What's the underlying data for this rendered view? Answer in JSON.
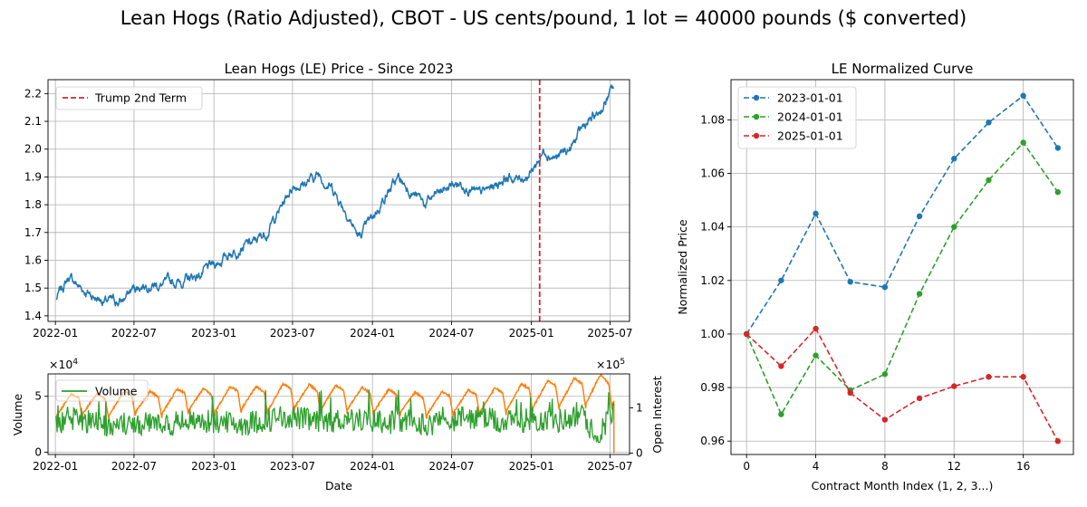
{
  "figure": {
    "suptitle": "Lean Hogs (Ratio Adjusted), CBOT - US cents/pound, 1 lot = 40000 pounds ($ converted)"
  },
  "colors": {
    "price": "#1f77b4",
    "volume": "#2ca02c",
    "open_interest": "#ff7f0e",
    "event": "#d62728",
    "s2023": "#1f77b4",
    "s2024": "#2ca02c",
    "s2025": "#d62728"
  },
  "chart_data": [
    {
      "type": "line",
      "title": "Lean Hogs (LE) Price - Since 2023",
      "xlabel": "",
      "ylabel": "",
      "xlim": [
        "2021-12-15",
        "2025-08-15"
      ],
      "ylim": [
        1.38,
        2.25
      ],
      "x_ticks": [
        "2022-01",
        "2022-07",
        "2023-01",
        "2023-07",
        "2024-01",
        "2024-07",
        "2025-01",
        "2025-07"
      ],
      "y_ticks": [
        "1.4",
        "1.5",
        "1.6",
        "1.7",
        "1.8",
        "1.9",
        "2.0",
        "2.1",
        "2.2"
      ],
      "grid": true,
      "legend": "top-left",
      "series": [
        {
          "name": "",
          "x": [
            "2022-01-03",
            "2022-02-01",
            "2022-03-01",
            "2022-04-01",
            "2022-05-01",
            "2022-06-01",
            "2022-07-01",
            "2022-08-01",
            "2022-09-01",
            "2022-10-01",
            "2022-11-01",
            "2022-12-01",
            "2023-01-01",
            "2023-02-01",
            "2023-03-01",
            "2023-04-01",
            "2023-05-01",
            "2023-06-01",
            "2023-07-01",
            "2023-08-01",
            "2023-09-01",
            "2023-10-01",
            "2023-11-01",
            "2023-12-01",
            "2024-01-01",
            "2024-02-01",
            "2024-03-01",
            "2024-04-01",
            "2024-05-01",
            "2024-06-01",
            "2024-07-01",
            "2024-08-01",
            "2024-09-01",
            "2024-10-01",
            "2024-11-01",
            "2024-12-01",
            "2025-01-01",
            "2025-02-01",
            "2025-03-01",
            "2025-04-01",
            "2025-05-01",
            "2025-06-01",
            "2025-07-10"
          ],
          "values": [
            1.46,
            1.54,
            1.5,
            1.47,
            1.45,
            1.45,
            1.5,
            1.52,
            1.51,
            1.52,
            1.53,
            1.55,
            1.58,
            1.62,
            1.65,
            1.66,
            1.7,
            1.78,
            1.87,
            1.88,
            1.91,
            1.86,
            1.78,
            1.68,
            1.75,
            1.84,
            1.89,
            1.85,
            1.8,
            1.84,
            1.87,
            1.88,
            1.83,
            1.86,
            1.9,
            1.89,
            1.92,
            2.0,
            1.97,
            2.0,
            2.08,
            2.12,
            2.22
          ]
        }
      ],
      "annotations": [
        {
          "name": "Trump 2nd Term",
          "x": "2025-01-20",
          "style": "dashed vertical line"
        }
      ]
    },
    {
      "type": "line",
      "title": "",
      "xlabel": "Date",
      "ylabel": "Volume",
      "ylabel_right": "Open Interest",
      "y_scale_label": "×10^4",
      "y2_scale_label": "×10^5",
      "xlim": [
        "2021-12-15",
        "2025-08-15"
      ],
      "ylim": [
        -0.2,
        7.0
      ],
      "y2lim": [
        -0.03,
        1.75
      ],
      "x_ticks": [
        "2022-01",
        "2022-07",
        "2023-01",
        "2023-07",
        "2024-01",
        "2024-07",
        "2025-01",
        "2025-07"
      ],
      "y_ticks": [
        "0",
        "5"
      ],
      "y2_ticks": [
        "0",
        "1"
      ],
      "grid": true,
      "legend": "top-left",
      "series": [
        {
          "name": "Volume",
          "axis": "left",
          "unit_scale": "1e4",
          "x": [
            "2022-01",
            "2022-03",
            "2022-05",
            "2022-07",
            "2022-09",
            "2022-11",
            "2023-01",
            "2023-03",
            "2023-05",
            "2023-07",
            "2023-09",
            "2023-11",
            "2024-01",
            "2024-03",
            "2024-05",
            "2024-07",
            "2024-09",
            "2024-11",
            "2025-01",
            "2025-03",
            "2025-05",
            "2025-06",
            "2025-07"
          ],
          "values": [
            2.5,
            3.0,
            2.3,
            2.6,
            2.4,
            2.8,
            2.7,
            2.5,
            2.9,
            3.2,
            2.6,
            3.0,
            2.8,
            2.7,
            2.5,
            2.9,
            3.1,
            2.6,
            3.0,
            2.8,
            3.3,
            1.0,
            3.5
          ]
        },
        {
          "name": "",
          "axis": "right",
          "unit_scale": "1e5",
          "x": [
            "2022-01",
            "2022-03",
            "2022-05",
            "2022-07",
            "2022-09",
            "2022-11",
            "2023-01",
            "2023-03",
            "2023-05",
            "2023-07",
            "2023-09",
            "2023-11",
            "2024-01",
            "2024-03",
            "2024-05",
            "2024-07",
            "2024-09",
            "2024-11",
            "2025-01",
            "2025-03",
            "2025-05",
            "2025-06",
            "2025-07"
          ],
          "values": [
            1.15,
            1.25,
            1.2,
            1.3,
            1.25,
            1.35,
            1.3,
            1.4,
            1.35,
            1.45,
            1.38,
            1.4,
            1.32,
            1.3,
            1.22,
            1.28,
            1.3,
            1.35,
            1.45,
            1.5,
            1.55,
            1.62,
            1.55
          ]
        }
      ]
    },
    {
      "type": "line",
      "title": "LE Normalized Curve",
      "xlabel": "Contract Month Index (1, 2, 3...)",
      "ylabel": "Normalized Price",
      "xlim": [
        -0.9,
        18.9
      ],
      "ylim": [
        0.955,
        1.095
      ],
      "x_ticks": [
        "0",
        "4",
        "8",
        "12",
        "16"
      ],
      "y_ticks": [
        "0.96",
        "0.98",
        "1.00",
        "1.02",
        "1.04",
        "1.06",
        "1.08"
      ],
      "grid": true,
      "legend": "top-left",
      "series": [
        {
          "name": "2023-01-01",
          "x": [
            0,
            2,
            4,
            6,
            8,
            10,
            12,
            14,
            16,
            18
          ],
          "values": [
            1.0,
            1.02,
            1.045,
            1.0195,
            1.0175,
            1.044,
            1.0655,
            1.079,
            1.089,
            1.0695
          ]
        },
        {
          "name": "2024-01-01",
          "x": [
            0,
            2,
            4,
            6,
            8,
            10,
            12,
            14,
            16,
            18
          ],
          "values": [
            1.0,
            0.97,
            0.992,
            0.979,
            0.985,
            1.015,
            1.04,
            1.0575,
            1.0715,
            1.053
          ]
        },
        {
          "name": "2025-01-01",
          "x": [
            0,
            2,
            4,
            6,
            8,
            10,
            12,
            14,
            16,
            18
          ],
          "values": [
            1.0,
            0.988,
            1.002,
            0.978,
            0.968,
            0.976,
            0.9805,
            0.984,
            0.984,
            0.96
          ]
        }
      ]
    }
  ]
}
